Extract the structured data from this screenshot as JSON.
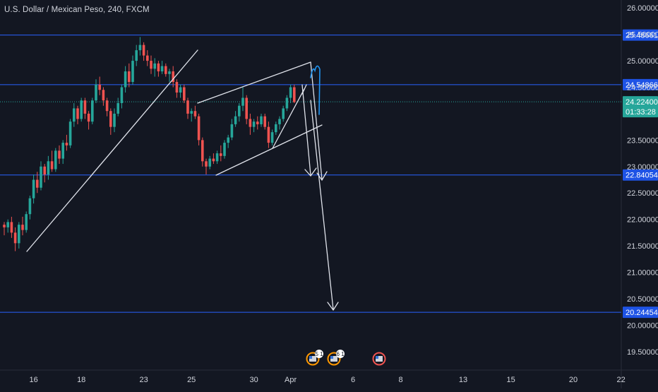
{
  "header": {
    "symbol_title": "U.S. Dollar / Mexican Peso, 240, FXCM"
  },
  "colors": {
    "background": "#131722",
    "up_candle": "#26a69a",
    "down_candle": "#ef5350",
    "level_line": "#2962ff",
    "price_line": "#26a69a",
    "drawing": "#e0e3eb",
    "drawing_blue": "#2196f3",
    "axis_text": "#d1d4dc"
  },
  "chart_data": {
    "type": "candlestick",
    "title": "U.S. Dollar / Mexican Peso, 240, FXCM",
    "ylim": [
      19.15,
      26.15
    ],
    "y_ticks": [
      "26.00000",
      "25.50000",
      "25.00000",
      "24.50000",
      "23.50000",
      "23.00000",
      "22.50000",
      "22.00000",
      "21.50000",
      "21.00000",
      "20.50000",
      "20.00000",
      "19.50000"
    ],
    "y_tick_values": [
      26.0,
      25.5,
      25.0,
      24.5,
      23.5,
      23.0,
      22.5,
      22.0,
      21.5,
      21.0,
      20.5,
      20.0,
      19.5
    ],
    "x_ticks": [
      "16",
      "18",
      "23",
      "25",
      "30",
      "Apr",
      "6",
      "8",
      "13",
      "15",
      "20",
      "22"
    ],
    "x_tick_index": [
      8,
      21,
      38,
      51,
      68,
      78,
      95,
      108,
      125,
      138,
      155,
      168
    ],
    "horizontal_levels": [
      {
        "label": "25.48661",
        "value": 25.48661
      },
      {
        "label": "24.54866",
        "value": 24.54866
      },
      {
        "label": "22.84054",
        "value": 22.84054
      },
      {
        "label": "20.24454",
        "value": 20.24454
      }
    ],
    "current_price": {
      "label": "24.22400",
      "value": 24.224,
      "countdown": "01:33:28"
    },
    "candles": [
      [
        21.9,
        21.95,
        21.7,
        21.85
      ],
      [
        21.85,
        22.0,
        21.75,
        21.95
      ],
      [
        21.95,
        22.05,
        21.65,
        21.75
      ],
      [
        21.75,
        21.85,
        21.4,
        21.55
      ],
      [
        21.55,
        21.95,
        21.45,
        21.9
      ],
      [
        21.9,
        22.05,
        21.7,
        21.8
      ],
      [
        21.8,
        22.15,
        21.75,
        22.1
      ],
      [
        22.1,
        22.45,
        22.0,
        22.4
      ],
      [
        22.4,
        22.85,
        22.3,
        22.75
      ],
      [
        22.75,
        22.9,
        22.5,
        22.6
      ],
      [
        22.6,
        23.1,
        22.55,
        23.0
      ],
      [
        23.0,
        23.05,
        22.7,
        22.85
      ],
      [
        22.85,
        23.2,
        22.75,
        23.1
      ],
      [
        23.1,
        23.3,
        22.9,
        22.95
      ],
      [
        22.95,
        23.35,
        22.9,
        23.3
      ],
      [
        23.3,
        23.4,
        23.05,
        23.15
      ],
      [
        23.15,
        23.5,
        23.05,
        23.45
      ],
      [
        23.45,
        23.6,
        23.3,
        23.4
      ],
      [
        23.4,
        23.9,
        23.35,
        23.85
      ],
      [
        23.85,
        24.2,
        23.75,
        24.1
      ],
      [
        24.1,
        24.15,
        23.8,
        23.9
      ],
      [
        23.9,
        24.3,
        23.85,
        24.25
      ],
      [
        24.25,
        24.3,
        23.9,
        24.0
      ],
      [
        24.0,
        24.05,
        23.7,
        23.85
      ],
      [
        23.85,
        24.3,
        23.8,
        24.25
      ],
      [
        24.25,
        24.65,
        24.2,
        24.55
      ],
      [
        24.55,
        24.7,
        24.35,
        24.45
      ],
      [
        24.45,
        24.5,
        24.15,
        24.25
      ],
      [
        24.25,
        24.3,
        23.95,
        24.05
      ],
      [
        24.05,
        24.1,
        23.6,
        23.75
      ],
      [
        23.75,
        24.1,
        23.65,
        24.0
      ],
      [
        24.0,
        24.3,
        23.95,
        24.2
      ],
      [
        24.2,
        24.55,
        24.1,
        24.5
      ],
      [
        24.5,
        24.9,
        24.4,
        24.8
      ],
      [
        24.8,
        24.95,
        24.5,
        24.6
      ],
      [
        24.6,
        25.1,
        24.55,
        25.0
      ],
      [
        25.0,
        25.3,
        24.9,
        25.2
      ],
      [
        25.2,
        25.45,
        25.1,
        25.3
      ],
      [
        25.3,
        25.35,
        25.0,
        25.1
      ],
      [
        25.1,
        25.2,
        24.9,
        25.0
      ],
      [
        25.0,
        25.1,
        24.75,
        24.85
      ],
      [
        24.85,
        25.05,
        24.7,
        24.95
      ],
      [
        24.95,
        25.0,
        24.7,
        24.8
      ],
      [
        24.8,
        25.0,
        24.75,
        24.9
      ],
      [
        24.9,
        24.95,
        24.7,
        24.75
      ],
      [
        24.75,
        24.85,
        24.6,
        24.8
      ],
      [
        24.8,
        24.9,
        24.5,
        24.6
      ],
      [
        24.6,
        24.65,
        24.3,
        24.4
      ],
      [
        24.4,
        24.55,
        24.3,
        24.5
      ],
      [
        24.5,
        24.55,
        24.2,
        24.25
      ],
      [
        24.25,
        24.3,
        23.9,
        24.0
      ],
      [
        24.0,
        24.1,
        23.85,
        24.05
      ],
      [
        24.05,
        24.15,
        23.9,
        23.95
      ],
      [
        23.95,
        24.0,
        23.4,
        23.5
      ],
      [
        23.5,
        23.55,
        23.0,
        23.1
      ],
      [
        23.1,
        23.15,
        22.85,
        23.0
      ],
      [
        23.0,
        23.2,
        22.95,
        23.15
      ],
      [
        23.15,
        23.25,
        23.05,
        23.1
      ],
      [
        23.1,
        23.3,
        23.05,
        23.25
      ],
      [
        23.25,
        23.4,
        23.1,
        23.2
      ],
      [
        23.2,
        23.5,
        23.15,
        23.45
      ],
      [
        23.45,
        23.6,
        23.35,
        23.55
      ],
      [
        23.55,
        23.9,
        23.5,
        23.8
      ],
      [
        23.8,
        24.05,
        23.75,
        23.95
      ],
      [
        23.95,
        24.2,
        23.85,
        24.15
      ],
      [
        24.15,
        24.5,
        24.05,
        24.3
      ],
      [
        24.3,
        24.35,
        23.8,
        23.9
      ],
      [
        23.9,
        24.0,
        23.6,
        23.75
      ],
      [
        23.75,
        23.9,
        23.65,
        23.85
      ],
      [
        23.85,
        23.95,
        23.7,
        23.8
      ],
      [
        23.8,
        24.0,
        23.75,
        23.95
      ],
      [
        23.95,
        24.0,
        23.7,
        23.75
      ],
      [
        23.75,
        23.85,
        23.35,
        23.45
      ],
      [
        23.45,
        23.7,
        23.4,
        23.65
      ],
      [
        23.65,
        23.85,
        23.6,
        23.8
      ],
      [
        23.8,
        23.95,
        23.7,
        23.9
      ],
      [
        23.9,
        24.15,
        23.85,
        24.1
      ],
      [
        24.1,
        24.35,
        24.05,
        24.3
      ],
      [
        24.3,
        24.55,
        24.2,
        24.5
      ],
      [
        24.5,
        24.55,
        24.2,
        24.22
      ]
    ],
    "events": [
      {
        "label": "5 1"
      },
      {
        "label": "6 1"
      },
      {
        "label": ""
      }
    ],
    "grid": false,
    "legend": "none"
  }
}
